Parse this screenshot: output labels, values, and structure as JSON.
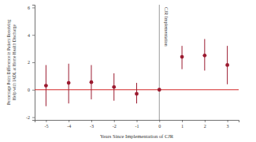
{
  "chart_data": {
    "type": "scatter",
    "x_label": "Years Since Implementation of CJR",
    "y_label": "Percentage Point Difference in Patient Receiving\nHelp with IADL at Home Health Discharge",
    "x": [
      -5,
      -4,
      -3,
      -2,
      -1,
      0,
      1,
      2,
      3
    ],
    "values": [
      0.3,
      0.5,
      0.55,
      0.2,
      -0.3,
      0,
      2.4,
      2.5,
      1.8
    ],
    "ci_lower": [
      -1.2,
      -1.0,
      -0.7,
      -0.8,
      -1.0,
      0,
      1.5,
      1.4,
      0.4
    ],
    "ci_upper": [
      1.8,
      1.9,
      1.8,
      1.2,
      0.5,
      0,
      3.2,
      3.7,
      3.2
    ],
    "color": "#9b1b30",
    "marker": "circle",
    "hline": 0,
    "annotations": [
      {
        "text": "CJR Implementation",
        "x": 0
      }
    ],
    "xlim": [
      -5.5,
      3.5
    ],
    "xticks": [
      -5,
      -4,
      -3,
      -2,
      -1,
      0,
      1,
      2,
      3
    ],
    "ylim": [
      -2.2,
      6.2
    ],
    "yticks": [
      -2,
      0,
      2,
      4,
      6
    ],
    "grid": false
  }
}
